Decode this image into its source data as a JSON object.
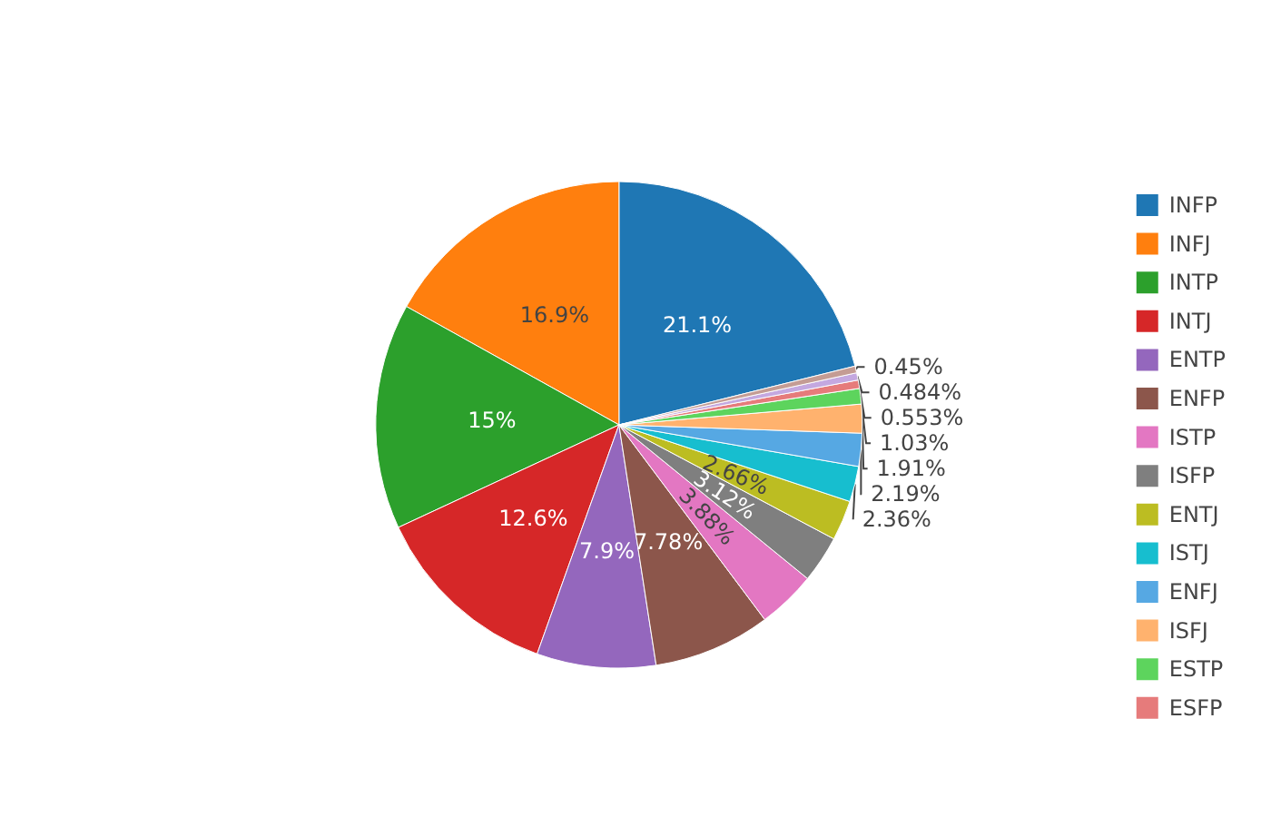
{
  "chart_data": {
    "type": "pie",
    "categories": [
      "INFP",
      "INFJ",
      "INTP",
      "INTJ",
      "ENTP",
      "ENFP",
      "ISTP",
      "ISFP",
      "ENTJ",
      "ISTJ",
      "ENFJ",
      "ISFJ",
      "ESTP",
      "ESFP",
      null,
      null
    ],
    "values": [
      21.1,
      16.9,
      15,
      12.6,
      7.9,
      7.78,
      3.88,
      3.12,
      2.66,
      2.36,
      2.19,
      1.91,
      1.03,
      0.553,
      0.484,
      0.45
    ],
    "colors": [
      "#1f77b4",
      "#ff7f0e",
      "#2ca02c",
      "#d62728",
      "#9467bd",
      "#8c564b",
      "#e377c2",
      "#7f7f7f",
      "#bcbd22",
      "#17becf",
      "#56a8e3",
      "#ffb26e",
      "#5dd45d",
      "#e67b7b",
      "#c4a8e0",
      "#c49c94"
    ],
    "value_labels": [
      "21.1%",
      "16.9%",
      "15%",
      "12.6%",
      "7.9%",
      "7.78%",
      "3.88%",
      "3.12%",
      "2.66%",
      "2.36%",
      "2.19%",
      "1.91%",
      "1.03%",
      "0.553%",
      "0.484%",
      "0.45%"
    ],
    "legend": "right"
  }
}
